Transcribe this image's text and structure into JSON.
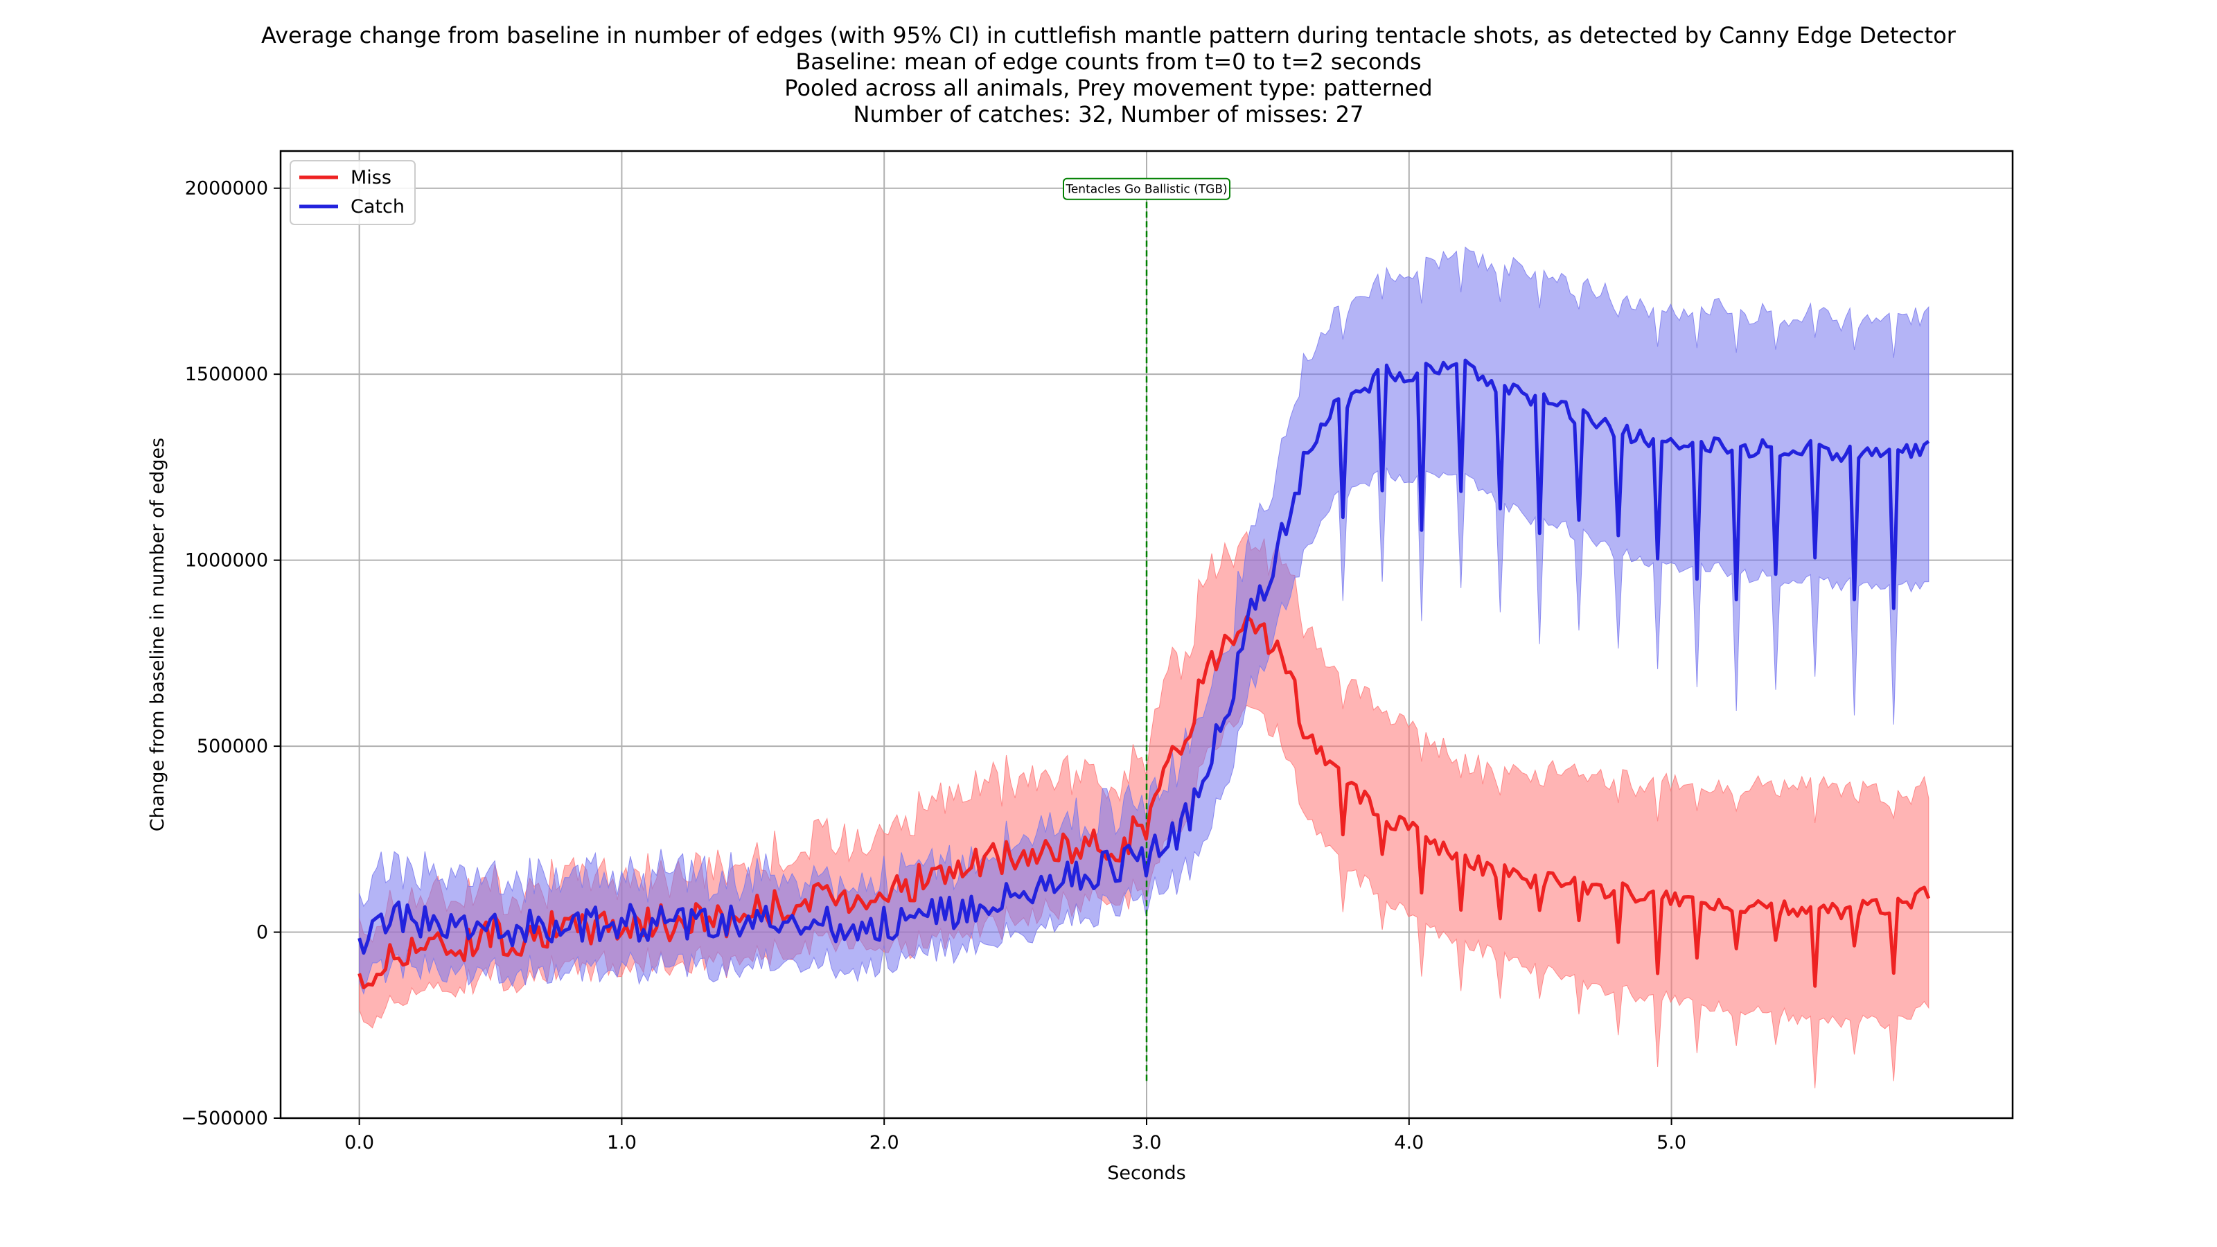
{
  "chart_data": {
    "type": "line",
    "title": [
      "Average change from baseline in number of edges (with 95% CI) in cuttlefish mantle pattern during tentacle shots, as detected by Canny Edge Detector",
      "Baseline: mean of edge counts from t=0 to t=2 seconds",
      "Pooled across all animals, Prey movement type: patterned",
      "Number of catches: 32, Number of misses: 27"
    ],
    "xlabel": "Seconds",
    "ylabel": "Change from baseline in number of edges",
    "xlim": [
      -0.3,
      6.3
    ],
    "ylim": [
      -500000,
      2100000
    ],
    "x_ticks": [
      0,
      1,
      2,
      3,
      4,
      5
    ],
    "x_tick_labels": [
      "0.0",
      "1.0",
      "2.0",
      "3.0",
      "4.0",
      "5.0"
    ],
    "y_ticks": [
      -500000,
      0,
      500000,
      1000000,
      1500000,
      2000000
    ],
    "y_tick_labels": [
      "−500000",
      "0",
      "500000",
      "1000000",
      "1500000",
      "2000000"
    ],
    "grid": true,
    "legend": {
      "position": "top-left",
      "entries": [
        "Miss",
        "Catch"
      ]
    },
    "annotation": {
      "text": "Tentacles Go Ballistic (TGB)",
      "x": 3.0,
      "y_range": [
        -400000,
        2000000
      ],
      "color": "#008000"
    },
    "series": [
      {
        "name": "Miss",
        "color": "#ee2222",
        "ci_color": "#ff7777",
        "x": [
          0.0,
          0.1,
          0.2,
          0.3,
          0.4,
          0.5,
          0.6,
          0.7,
          0.8,
          0.9,
          1.0,
          1.1,
          1.2,
          1.3,
          1.4,
          1.5,
          1.6,
          1.7,
          1.8,
          1.9,
          2.0,
          2.1,
          2.2,
          2.3,
          2.4,
          2.5,
          2.6,
          2.7,
          2.8,
          2.9,
          3.0,
          3.1,
          3.2,
          3.3,
          3.4,
          3.5,
          3.6,
          3.7,
          3.8,
          3.9,
          4.0,
          4.1,
          4.2,
          4.3,
          4.4,
          4.5,
          4.6,
          4.7,
          4.8,
          4.9,
          5.0,
          5.1,
          5.2,
          5.3,
          5.4,
          5.5,
          5.6,
          5.7,
          5.8,
          5.9,
          5.98
        ],
        "mean": [
          -150000,
          -80000,
          -30000,
          -40000,
          -30000,
          0,
          -20000,
          10000,
          0,
          20000,
          20000,
          30000,
          20000,
          40000,
          30000,
          60000,
          70000,
          80000,
          90000,
          100000,
          110000,
          130000,
          150000,
          170000,
          190000,
          200000,
          210000,
          220000,
          230000,
          240000,
          300000,
          450000,
          650000,
          800000,
          880000,
          750000,
          550000,
          450000,
          380000,
          300000,
          280000,
          230000,
          210000,
          170000,
          150000,
          140000,
          130000,
          120000,
          110000,
          100000,
          90000,
          80000,
          80000,
          70000,
          70000,
          60000,
          60000,
          60000,
          70000,
          80000,
          100000
        ],
        "upper": [
          -30000,
          80000,
          100000,
          90000,
          100000,
          130000,
          110000,
          140000,
          130000,
          150000,
          150000,
          170000,
          150000,
          180000,
          170000,
          200000,
          210000,
          230000,
          240000,
          260000,
          280000,
          320000,
          350000,
          370000,
          390000,
          400000,
          410000,
          420000,
          420000,
          430000,
          500000,
          680000,
          900000,
          1050000,
          1100000,
          1000000,
          850000,
          700000,
          650000,
          600000,
          550000,
          500000,
          470000,
          430000,
          420000,
          420000,
          430000,
          420000,
          410000,
          400000,
          400000,
          390000,
          400000,
          390000,
          400000,
          400000,
          390000,
          380000,
          370000,
          370000,
          380000
        ],
        "lower": [
          -250000,
          -200000,
          -150000,
          -160000,
          -130000,
          -110000,
          -130000,
          -100000,
          -110000,
          -90000,
          -90000,
          -80000,
          -90000,
          -70000,
          -80000,
          -60000,
          -50000,
          -40000,
          -30000,
          -20000,
          -40000,
          -30000,
          -20000,
          -10000,
          10000,
          30000,
          50000,
          70000,
          90000,
          100000,
          120000,
          250000,
          420000,
          560000,
          650000,
          520000,
          330000,
          220000,
          150000,
          90000,
          40000,
          0,
          -20000,
          -50000,
          -80000,
          -100000,
          -120000,
          -140000,
          -160000,
          -170000,
          -180000,
          -190000,
          -200000,
          -210000,
          -220000,
          -230000,
          -240000,
          -240000,
          -240000,
          -230000,
          -200000
        ]
      },
      {
        "name": "Catch",
        "color": "#2222dd",
        "ci_color": "#7777ee",
        "x": [
          0.0,
          0.1,
          0.2,
          0.3,
          0.4,
          0.5,
          0.6,
          0.7,
          0.8,
          0.9,
          1.0,
          1.1,
          1.2,
          1.3,
          1.4,
          1.5,
          1.6,
          1.7,
          1.8,
          1.9,
          2.0,
          2.1,
          2.2,
          2.3,
          2.4,
          2.5,
          2.6,
          2.7,
          2.8,
          2.9,
          3.0,
          3.1,
          3.2,
          3.3,
          3.4,
          3.5,
          3.6,
          3.7,
          3.8,
          3.9,
          4.0,
          4.1,
          4.2,
          4.3,
          4.4,
          4.5,
          4.6,
          4.7,
          4.8,
          4.9,
          5.0,
          5.1,
          5.2,
          5.3,
          5.4,
          5.5,
          5.6,
          5.7,
          5.8,
          5.9,
          5.98
        ],
        "mean": [
          -50000,
          30000,
          40000,
          10000,
          20000,
          10000,
          0,
          20000,
          30000,
          20000,
          30000,
          20000,
          30000,
          20000,
          30000,
          30000,
          10000,
          20000,
          20000,
          10000,
          20000,
          30000,
          50000,
          60000,
          80000,
          100000,
          120000,
          140000,
          160000,
          180000,
          200000,
          250000,
          350000,
          600000,
          850000,
          1050000,
          1250000,
          1400000,
          1450000,
          1500000,
          1500000,
          1510000,
          1520000,
          1480000,
          1450000,
          1430000,
          1400000,
          1370000,
          1350000,
          1330000,
          1320000,
          1310000,
          1300000,
          1300000,
          1300000,
          1300000,
          1290000,
          1290000,
          1290000,
          1290000,
          1300000
        ],
        "upper": [
          50000,
          180000,
          170000,
          140000,
          150000,
          140000,
          130000,
          150000,
          160000,
          150000,
          160000,
          150000,
          150000,
          140000,
          150000,
          150000,
          130000,
          140000,
          140000,
          130000,
          140000,
          160000,
          180000,
          200000,
          220000,
          240000,
          270000,
          290000,
          310000,
          330000,
          350000,
          420000,
          550000,
          780000,
          1050000,
          1300000,
          1500000,
          1650000,
          1700000,
          1760000,
          1780000,
          1800000,
          1820000,
          1800000,
          1780000,
          1760000,
          1740000,
          1720000,
          1700000,
          1690000,
          1680000,
          1670000,
          1670000,
          1660000,
          1660000,
          1660000,
          1660000,
          1650000,
          1650000,
          1650000,
          1650000
        ],
        "lower": [
          -150000,
          -100000,
          -80000,
          -110000,
          -100000,
          -110000,
          -120000,
          -100000,
          -90000,
          -100000,
          -90000,
          -100000,
          -90000,
          -100000,
          -90000,
          -90000,
          -100000,
          -90000,
          -90000,
          -100000,
          -80000,
          -70000,
          -50000,
          -40000,
          -20000,
          -10000,
          10000,
          30000,
          50000,
          70000,
          90000,
          130000,
          200000,
          400000,
          650000,
          850000,
          1000000,
          1150000,
          1200000,
          1230000,
          1220000,
          1230000,
          1220000,
          1180000,
          1130000,
          1100000,
          1080000,
          1050000,
          1020000,
          1000000,
          990000,
          980000,
          970000,
          960000,
          950000,
          950000,
          940000,
          940000,
          930000,
          930000,
          930000
        ]
      }
    ]
  }
}
